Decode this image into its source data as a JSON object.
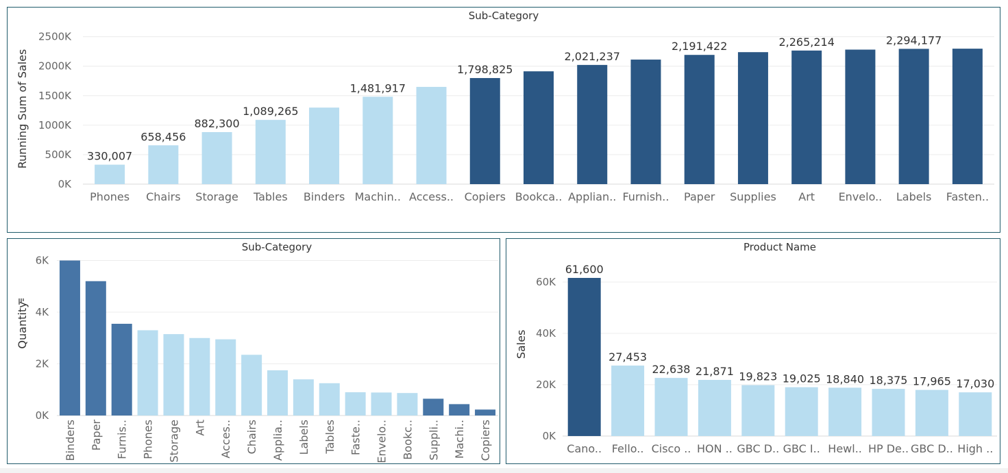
{
  "colors": {
    "dark": "#2b5784",
    "medium": "#4775a6",
    "light": "#b8ddf0",
    "border": "#1f5a6a"
  },
  "chart_data": [
    {
      "id": "running-sales",
      "type": "bar",
      "title": "Sub-Category",
      "ylabel": "Running Sum of Sales",
      "ylim": [
        0,
        2600000
      ],
      "yticks": [
        0,
        500000,
        1000000,
        1500000,
        2000000,
        2500000
      ],
      "ytick_labels": [
        "0K",
        "500K",
        "1000K",
        "1500K",
        "2000K",
        "2500K"
      ],
      "categories": [
        "Phones",
        "Chairs",
        "Storage",
        "Tables",
        "Binders",
        "Machin..",
        "Access..",
        "Copiers",
        "Bookca..",
        "Applian..",
        "Furnish..",
        "Paper",
        "Supplies",
        "Art",
        "Envelo..",
        "Labels",
        "Fasten.."
      ],
      "values": [
        330007,
        658456,
        882300,
        1089265,
        1298000,
        1481917,
        1649000,
        1798825,
        1913000,
        2021237,
        2112000,
        2191422,
        2238000,
        2265214,
        2281000,
        2294177,
        2297000
      ],
      "value_labels": [
        "330,007",
        "658,456",
        "882,300",
        "1,089,265",
        "",
        "1,481,917",
        "",
        "1,798,825",
        "",
        "2,021,237",
        "",
        "2,191,422",
        "",
        "2,265,214",
        "",
        "2,294,177",
        ""
      ],
      "bar_colors": [
        "light",
        "light",
        "light",
        "light",
        "light",
        "light",
        "light",
        "dark",
        "dark",
        "dark",
        "dark",
        "dark",
        "dark",
        "dark",
        "dark",
        "dark",
        "dark"
      ],
      "grid": true
    },
    {
      "id": "quantity",
      "type": "bar",
      "title": "Sub-Category",
      "ylabel": "Quantity",
      "ylim": [
        0,
        6200
      ],
      "yticks": [
        0,
        2000,
        4000,
        6000
      ],
      "ytick_labels": [
        "0K",
        "2K",
        "4K",
        "6K"
      ],
      "categories": [
        "Binders",
        "Paper",
        "Furnis..",
        "Phones",
        "Storage",
        "Art",
        "Acces..",
        "Chairs",
        "Applia..",
        "Labels",
        "Tables",
        "Faste..",
        "Envelo..",
        "Bookc..",
        "Suppli..",
        "Machi..",
        "Copiers"
      ],
      "values": [
        6000,
        5200,
        3550,
        3300,
        3150,
        3000,
        2950,
        2350,
        1750,
        1400,
        1250,
        900,
        890,
        870,
        650,
        440,
        230
      ],
      "value_labels": [],
      "bar_colors": [
        "medium",
        "medium",
        "medium",
        "light",
        "light",
        "light",
        "light",
        "light",
        "light",
        "light",
        "light",
        "light",
        "light",
        "light",
        "medium",
        "medium",
        "medium"
      ],
      "grid": true
    },
    {
      "id": "product-sales",
      "type": "bar",
      "title": "Product Name",
      "ylabel": "Sales",
      "ylim": [
        0,
        64000
      ],
      "yticks": [
        0,
        20000,
        40000,
        60000
      ],
      "ytick_labels": [
        "0K",
        "20K",
        "40K",
        "60K"
      ],
      "categories": [
        "Cano..",
        "Fello..",
        "Cisco ..",
        "HON ..",
        "GBC D..",
        "GBC I..",
        "Hewl..",
        "HP De..",
        "GBC D..",
        "High .."
      ],
      "values": [
        61600,
        27453,
        22638,
        21871,
        19823,
        19025,
        18840,
        18375,
        17965,
        17030
      ],
      "value_labels": [
        "61,600",
        "27,453",
        "22,638",
        "21,871",
        "19,823",
        "19,025",
        "18,840",
        "18,375",
        "17,965",
        "17,030"
      ],
      "bar_colors": [
        "dark",
        "light",
        "light",
        "light",
        "light",
        "light",
        "light",
        "light",
        "light",
        "light"
      ],
      "grid": true
    }
  ]
}
